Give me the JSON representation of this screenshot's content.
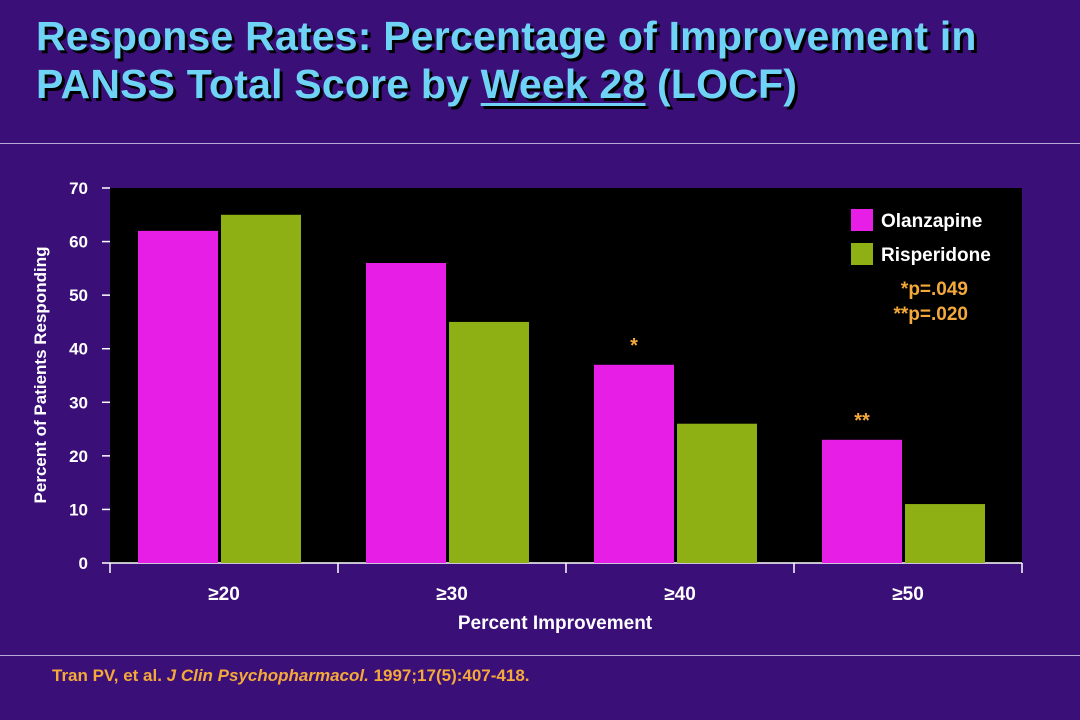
{
  "slide": {
    "title_line1": "Response Rates: Percentage of Improvement in",
    "title_line2_prefix": "PANSS Total Score by ",
    "title_line2_underlined": "Week 28",
    "title_line2_suffix": " (LOCF)",
    "citation_authors": "Tran PV, et al. ",
    "citation_journal": "J Clin Psychopharmacol.",
    "citation_details": " 1997;17(5):407-418."
  },
  "colors": {
    "background": "#3a0f78",
    "title": "#6fd3f5",
    "olanzapine": "#e61ee6",
    "risperidone": "#8fb014",
    "annotation": "#f4a93a",
    "plot_background": "#000000"
  },
  "chart_data": {
    "type": "bar",
    "categories": [
      "≥20",
      "≥30",
      "≥40",
      "≥50"
    ],
    "series": [
      {
        "name": "Olanzapine",
        "values": [
          62,
          56,
          37,
          23
        ]
      },
      {
        "name": "Risperidone",
        "values": [
          65,
          45,
          26,
          11
        ]
      }
    ],
    "xlabel": "Percent Improvement",
    "ylabel": "Percent of Patients Responding",
    "ylim": [
      0,
      70
    ],
    "yticks": [
      0,
      10,
      20,
      30,
      40,
      50,
      60,
      70
    ],
    "grid": false,
    "legend_position": "top-right",
    "significance_marks": [
      {
        "category": "≥40",
        "series": "Olanzapine",
        "mark": "*"
      },
      {
        "category": "≥50",
        "series": "Olanzapine",
        "mark": "**"
      }
    ],
    "annotations": [
      "*p=.049",
      "**p=.020"
    ]
  }
}
